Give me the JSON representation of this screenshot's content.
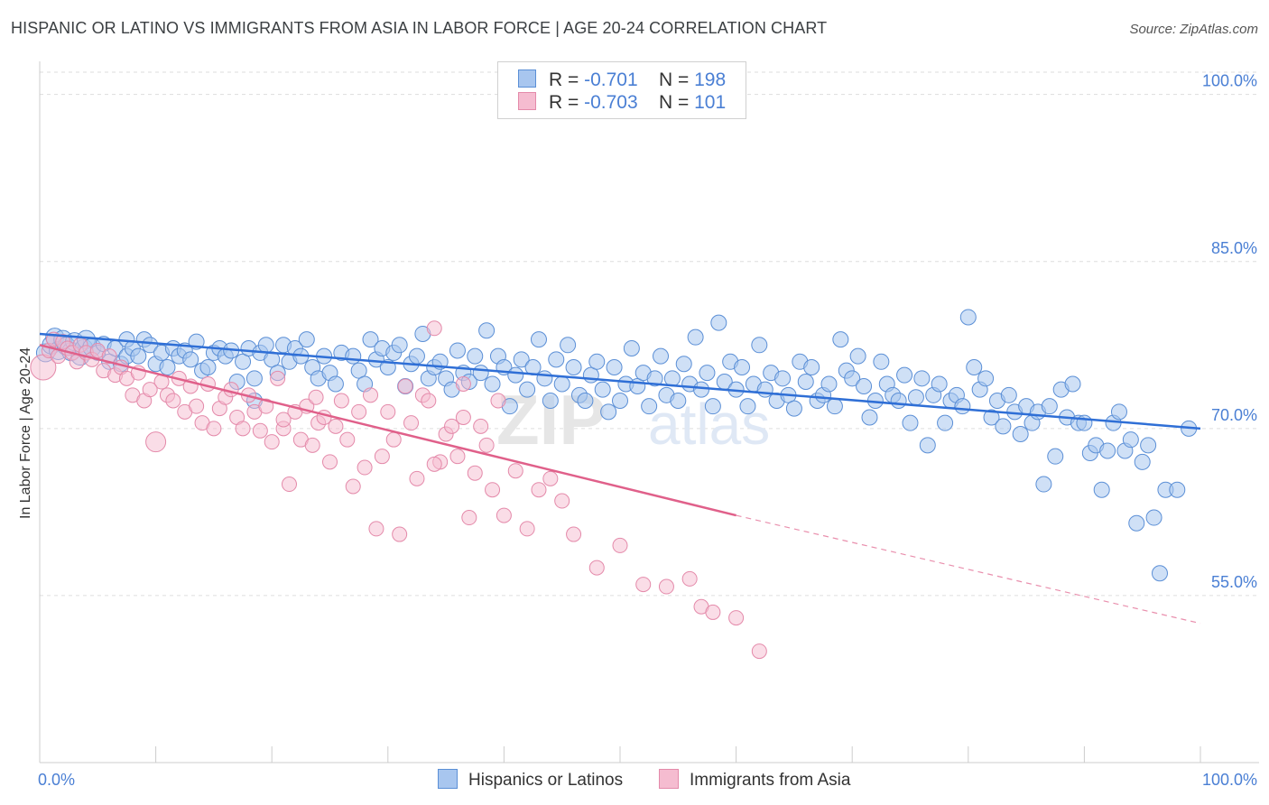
{
  "title": "HISPANIC OR LATINO VS IMMIGRANTS FROM ASIA IN LABOR FORCE | AGE 20-24 CORRELATION CHART",
  "source": "Source: ZipAtlas.com",
  "legend": {
    "r_label": "R =",
    "n_label": "N =",
    "rows": [
      {
        "r": "-0.701",
        "n": "198"
      },
      {
        "r": "-0.703",
        "n": "101"
      }
    ]
  },
  "bottom_legend": [
    "Hispanics or Latinos",
    "Immigrants from Asia"
  ],
  "colors": {
    "blue_fill": "#a8c6ef",
    "blue_stroke": "#5b8fd6",
    "blue_line": "#2f6fd6",
    "pink_fill": "#f5bcd0",
    "pink_stroke": "#e48aaa",
    "pink_line": "#e0608a",
    "tick_text": "#4a7fd4",
    "grid": "#dddddd"
  },
  "chart_data": {
    "type": "scatter",
    "title": "HISPANIC OR LATINO VS IMMIGRANTS FROM ASIA IN LABOR FORCE | AGE 20-24 CORRELATION CHART",
    "xlabel": "",
    "ylabel": "In Labor Force | Age 20-24",
    "xlim": [
      0,
      100
    ],
    "ylim": [
      40,
      102
    ],
    "x_tick_labels": [
      "0.0%",
      "100.0%"
    ],
    "y_ticks": [
      {
        "value": 100,
        "label": "100.0%"
      },
      {
        "value": 85,
        "label": "85.0%"
      },
      {
        "value": 70,
        "label": "70.0%"
      },
      {
        "value": 55,
        "label": "55.0%"
      }
    ],
    "watermark": "ZIPatlas",
    "series": [
      {
        "name": "Hispanics or Latinos",
        "r": -0.701,
        "n": 198,
        "trend": {
          "x0": 0,
          "y0": 78.5,
          "x1": 100,
          "y1": 70.0
        },
        "points": [
          [
            0.5,
            76.8
          ],
          [
            1,
            77.5
          ],
          [
            1.3,
            78.2
          ],
          [
            1.6,
            77.0
          ],
          [
            2,
            78.0
          ],
          [
            2.3,
            77.4
          ],
          [
            2.7,
            76.9
          ],
          [
            3,
            77.8
          ],
          [
            3.5,
            76.5
          ],
          [
            3.8,
            77.2
          ],
          [
            4,
            78.0
          ],
          [
            4.5,
            77.3
          ],
          [
            5,
            76.8
          ],
          [
            5.5,
            77.6
          ],
          [
            6,
            76.0
          ],
          [
            6.5,
            77.2
          ],
          [
            7,
            75.8
          ],
          [
            7.5,
            76.5
          ],
          [
            7.5,
            78.0
          ],
          [
            8,
            77.2
          ],
          [
            8.5,
            76.5
          ],
          [
            9,
            78.0
          ],
          [
            9.5,
            77.5
          ],
          [
            10,
            75.8
          ],
          [
            10.5,
            76.8
          ],
          [
            11,
            75.5
          ],
          [
            11.5,
            77.2
          ],
          [
            12,
            76.5
          ],
          [
            12.5,
            77.0
          ],
          [
            13,
            76.2
          ],
          [
            13.5,
            77.8
          ],
          [
            14,
            75.2
          ],
          [
            14.5,
            75.5
          ],
          [
            15,
            76.8
          ],
          [
            15.5,
            77.2
          ],
          [
            16,
            76.5
          ],
          [
            16.5,
            77.0
          ],
          [
            17,
            74.2
          ],
          [
            17.5,
            76.0
          ],
          [
            18,
            77.2
          ],
          [
            18.5,
            74.5
          ],
          [
            19,
            76.8
          ],
          [
            19.5,
            77.5
          ],
          [
            20,
            76.2
          ],
          [
            20.5,
            75.0
          ],
          [
            21,
            77.5
          ],
          [
            21.5,
            76.0
          ],
          [
            22,
            77.2
          ],
          [
            22.5,
            76.5
          ],
          [
            23,
            78.0
          ],
          [
            23.5,
            75.5
          ],
          [
            24,
            74.5
          ],
          [
            24.5,
            76.5
          ],
          [
            25,
            75.0
          ],
          [
            25.5,
            74.0
          ],
          [
            26,
            76.8
          ],
          [
            27,
            76.5
          ],
          [
            27.5,
            75.2
          ],
          [
            28,
            74.0
          ],
          [
            28.5,
            78.0
          ],
          [
            29,
            76.2
          ],
          [
            29.5,
            77.2
          ],
          [
            30,
            75.5
          ],
          [
            30.5,
            76.8
          ],
          [
            31,
            77.5
          ],
          [
            31.5,
            73.8
          ],
          [
            32,
            75.8
          ],
          [
            32.5,
            76.5
          ],
          [
            33,
            78.5
          ],
          [
            33.5,
            74.5
          ],
          [
            34,
            75.5
          ],
          [
            34.5,
            76.0
          ],
          [
            35,
            74.5
          ],
          [
            35.5,
            73.5
          ],
          [
            36,
            77.0
          ],
          [
            36.5,
            75.0
          ],
          [
            37,
            74.2
          ],
          [
            37.5,
            76.5
          ],
          [
            38,
            75.0
          ],
          [
            38.5,
            78.8
          ],
          [
            39,
            74.0
          ],
          [
            39.5,
            76.5
          ],
          [
            40,
            75.5
          ],
          [
            40.5,
            72.0
          ],
          [
            41,
            74.8
          ],
          [
            41.5,
            76.2
          ],
          [
            42,
            73.5
          ],
          [
            42.5,
            75.5
          ],
          [
            43,
            78.0
          ],
          [
            43.5,
            74.5
          ],
          [
            44,
            72.5
          ],
          [
            44.5,
            76.2
          ],
          [
            45,
            74.0
          ],
          [
            45.5,
            77.5
          ],
          [
            46,
            75.5
          ],
          [
            46.5,
            73.0
          ],
          [
            47,
            72.5
          ],
          [
            47.5,
            74.8
          ],
          [
            48,
            76.0
          ],
          [
            48.5,
            73.5
          ],
          [
            49,
            71.5
          ],
          [
            49.5,
            75.5
          ],
          [
            50,
            72.5
          ],
          [
            50.5,
            74.0
          ],
          [
            51,
            77.2
          ],
          [
            51.5,
            73.8
          ],
          [
            52,
            75.0
          ],
          [
            52.5,
            72.0
          ],
          [
            53,
            74.5
          ],
          [
            53.5,
            76.5
          ],
          [
            54,
            73.0
          ],
          [
            54.5,
            74.5
          ],
          [
            55,
            72.5
          ],
          [
            55.5,
            75.8
          ],
          [
            56,
            74.0
          ],
          [
            56.5,
            78.2
          ],
          [
            57,
            73.5
          ],
          [
            57.5,
            75.0
          ],
          [
            58,
            72.0
          ],
          [
            58.5,
            79.5
          ],
          [
            59,
            74.2
          ],
          [
            59.5,
            76.0
          ],
          [
            60,
            73.5
          ],
          [
            60.5,
            75.5
          ],
          [
            61,
            72.0
          ],
          [
            61.5,
            74.0
          ],
          [
            62,
            77.5
          ],
          [
            62.5,
            73.5
          ],
          [
            63,
            75.0
          ],
          [
            63.5,
            72.5
          ],
          [
            64,
            74.5
          ],
          [
            64.5,
            73.0
          ],
          [
            65,
            71.8
          ],
          [
            65.5,
            76.0
          ],
          [
            66,
            74.2
          ],
          [
            66.5,
            75.5
          ],
          [
            67,
            72.5
          ],
          [
            67.5,
            73.0
          ],
          [
            68,
            74.0
          ],
          [
            68.5,
            72.0
          ],
          [
            69,
            78.0
          ],
          [
            69.5,
            75.2
          ],
          [
            70,
            74.5
          ],
          [
            70.5,
            76.5
          ],
          [
            71,
            73.8
          ],
          [
            71.5,
            71.0
          ],
          [
            72,
            72.5
          ],
          [
            72.5,
            76.0
          ],
          [
            73,
            74.0
          ],
          [
            73.5,
            73.0
          ],
          [
            74,
            72.5
          ],
          [
            74.5,
            74.8
          ],
          [
            75,
            70.5
          ],
          [
            75.5,
            72.8
          ],
          [
            76,
            74.5
          ],
          [
            76.5,
            68.5
          ],
          [
            77,
            73.0
          ],
          [
            77.5,
            74.0
          ],
          [
            78,
            70.5
          ],
          [
            78.5,
            72.5
          ],
          [
            79,
            73.0
          ],
          [
            79.5,
            72.0
          ],
          [
            80,
            80.0
          ],
          [
            80.5,
            75.5
          ],
          [
            81,
            73.5
          ],
          [
            81.5,
            74.5
          ],
          [
            82,
            71.0
          ],
          [
            82.5,
            72.5
          ],
          [
            83,
            70.2
          ],
          [
            83.5,
            73.0
          ],
          [
            84,
            71.5
          ],
          [
            84.5,
            69.5
          ],
          [
            85,
            72.0
          ],
          [
            85.5,
            70.5
          ],
          [
            86,
            71.5
          ],
          [
            86.5,
            65.0
          ],
          [
            87,
            72.0
          ],
          [
            87.5,
            67.5
          ],
          [
            88,
            73.5
          ],
          [
            88.5,
            71.0
          ],
          [
            89,
            74.0
          ],
          [
            89.5,
            70.5
          ],
          [
            90,
            70.5
          ],
          [
            90.5,
            67.8
          ],
          [
            91,
            68.5
          ],
          [
            91.5,
            64.5
          ],
          [
            92,
            68.0
          ],
          [
            92.5,
            70.5
          ],
          [
            93,
            71.5
          ],
          [
            93.5,
            68.0
          ],
          [
            94,
            69.0
          ],
          [
            94.5,
            61.5
          ],
          [
            95,
            67.0
          ],
          [
            95.5,
            68.5
          ],
          [
            96,
            62.0
          ],
          [
            96.5,
            57.0
          ],
          [
            97,
            64.5
          ],
          [
            98,
            64.5
          ],
          [
            99,
            70.0
          ],
          [
            18.5,
            72.5
          ]
        ]
      },
      {
        "name": "Immigrants from Asia",
        "r": -0.703,
        "n": 101,
        "trend": {
          "x0": 0,
          "y0": 77.5,
          "x1": 60,
          "y1": 62.2,
          "dash_x1": 100,
          "dash_y1": 52.5
        },
        "points": [
          [
            0.3,
            75.5
          ],
          [
            0.8,
            77.0
          ],
          [
            1.2,
            78.0
          ],
          [
            1.6,
            76.5
          ],
          [
            2,
            77.8
          ],
          [
            2.4,
            77.2
          ],
          [
            2.8,
            76.8
          ],
          [
            3.2,
            76.0
          ],
          [
            3.5,
            77.5
          ],
          [
            4,
            76.8
          ],
          [
            4.5,
            76.2
          ],
          [
            5,
            77.0
          ],
          [
            5.5,
            75.2
          ],
          [
            6,
            76.5
          ],
          [
            6.5,
            74.8
          ],
          [
            7,
            75.5
          ],
          [
            7.5,
            74.5
          ],
          [
            8,
            73.0
          ],
          [
            8.5,
            75.0
          ],
          [
            9,
            72.5
          ],
          [
            10,
            68.8
          ],
          [
            10.5,
            74.2
          ],
          [
            11,
            73.0
          ],
          [
            11.5,
            72.5
          ],
          [
            12,
            74.5
          ],
          [
            12.5,
            71.5
          ],
          [
            13,
            73.8
          ],
          [
            13.5,
            72.0
          ],
          [
            14,
            70.5
          ],
          [
            14.5,
            74.0
          ],
          [
            15,
            70.0
          ],
          [
            15.5,
            71.8
          ],
          [
            16,
            72.8
          ],
          [
            16.5,
            73.5
          ],
          [
            17,
            71.0
          ],
          [
            17.5,
            70.0
          ],
          [
            18,
            73.0
          ],
          [
            18.5,
            71.5
          ],
          [
            19,
            69.8
          ],
          [
            19.5,
            72.0
          ],
          [
            20,
            68.8
          ],
          [
            20.5,
            74.5
          ],
          [
            21,
            70.0
          ],
          [
            21.5,
            65.0
          ],
          [
            22,
            71.5
          ],
          [
            22.5,
            69.0
          ],
          [
            23,
            72.0
          ],
          [
            23.5,
            68.5
          ],
          [
            24,
            70.5
          ],
          [
            24.5,
            71.0
          ],
          [
            25,
            67.0
          ],
          [
            25.5,
            70.2
          ],
          [
            26,
            72.5
          ],
          [
            26.5,
            69.0
          ],
          [
            27,
            64.8
          ],
          [
            27.5,
            71.5
          ],
          [
            28,
            66.5
          ],
          [
            28.5,
            73.0
          ],
          [
            29,
            61.0
          ],
          [
            29.5,
            67.5
          ],
          [
            30,
            71.5
          ],
          [
            30.5,
            69.0
          ],
          [
            31,
            60.5
          ],
          [
            31.5,
            73.8
          ],
          [
            32,
            70.5
          ],
          [
            32.5,
            65.5
          ],
          [
            33,
            73.0
          ],
          [
            33.5,
            72.5
          ],
          [
            34,
            79.0
          ],
          [
            34.5,
            67.0
          ],
          [
            35,
            69.5
          ],
          [
            35.5,
            70.2
          ],
          [
            36,
            67.5
          ],
          [
            36.5,
            71.0
          ],
          [
            37,
            62.0
          ],
          [
            37.5,
            66.0
          ],
          [
            38,
            70.2
          ],
          [
            38.5,
            68.5
          ],
          [
            39,
            64.5
          ],
          [
            39.5,
            72.5
          ],
          [
            40,
            62.2
          ],
          [
            41,
            66.2
          ],
          [
            42,
            61.0
          ],
          [
            43,
            64.5
          ],
          [
            44,
            65.5
          ],
          [
            45,
            63.5
          ],
          [
            46,
            60.5
          ],
          [
            48,
            57.5
          ],
          [
            50,
            59.5
          ],
          [
            52,
            56.0
          ],
          [
            54,
            55.8
          ],
          [
            56,
            56.5
          ],
          [
            57,
            54.0
          ],
          [
            58,
            53.5
          ],
          [
            60,
            53.0
          ],
          [
            62,
            50.0
          ],
          [
            36.5,
            74.0
          ],
          [
            34,
            66.8
          ],
          [
            23.8,
            72.8
          ],
          [
            21,
            70.8
          ],
          [
            9.5,
            73.5
          ]
        ]
      }
    ]
  }
}
